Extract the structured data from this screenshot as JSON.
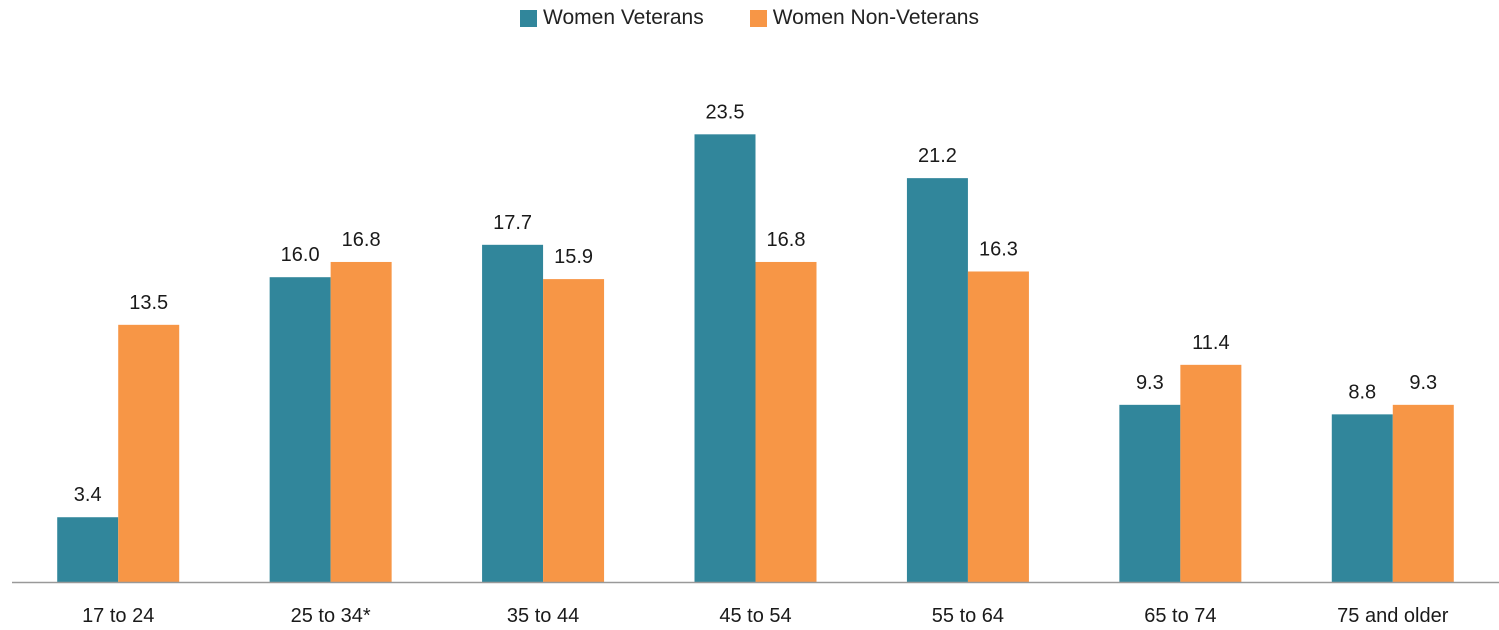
{
  "colors": {
    "veterans": "#31869b",
    "nonveterans": "#f79646",
    "axis": "#999999",
    "text": "#1a1a1a"
  },
  "chart_data": {
    "type": "bar",
    "title": "",
    "xlabel": "",
    "ylabel": "",
    "ylim": [
      0,
      26.5
    ],
    "grid": false,
    "legend_position": "top-center",
    "categories": [
      "17 to 24",
      "25 to 34*",
      "35 to 44",
      "45 to 54",
      "55 to 64",
      "65 to 74",
      "75 and older"
    ],
    "series": [
      {
        "name": "Women Veterans",
        "values": [
          3.4,
          16.0,
          17.7,
          23.5,
          21.2,
          9.3,
          8.8
        ]
      },
      {
        "name": "Women Non-Veterans",
        "values": [
          13.5,
          16.8,
          15.9,
          16.8,
          16.3,
          11.4,
          9.3
        ]
      }
    ]
  }
}
